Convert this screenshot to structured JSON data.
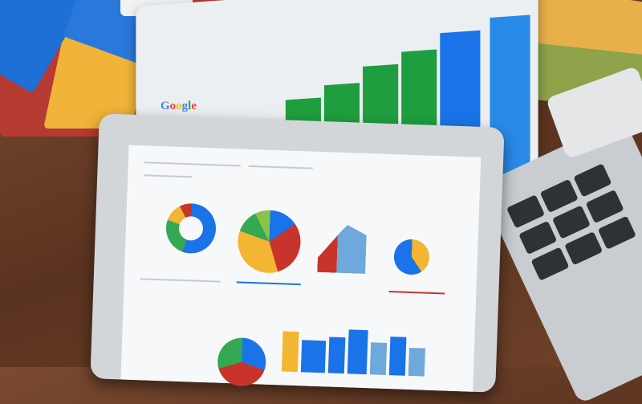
{
  "scene": {
    "logo_text": "Google",
    "colors": {
      "blue": "#1a73e8",
      "green": "#1e9e3e",
      "yellow": "#f2b632",
      "red": "#c8342c",
      "wood": "#6b3f2a"
    }
  }
}
